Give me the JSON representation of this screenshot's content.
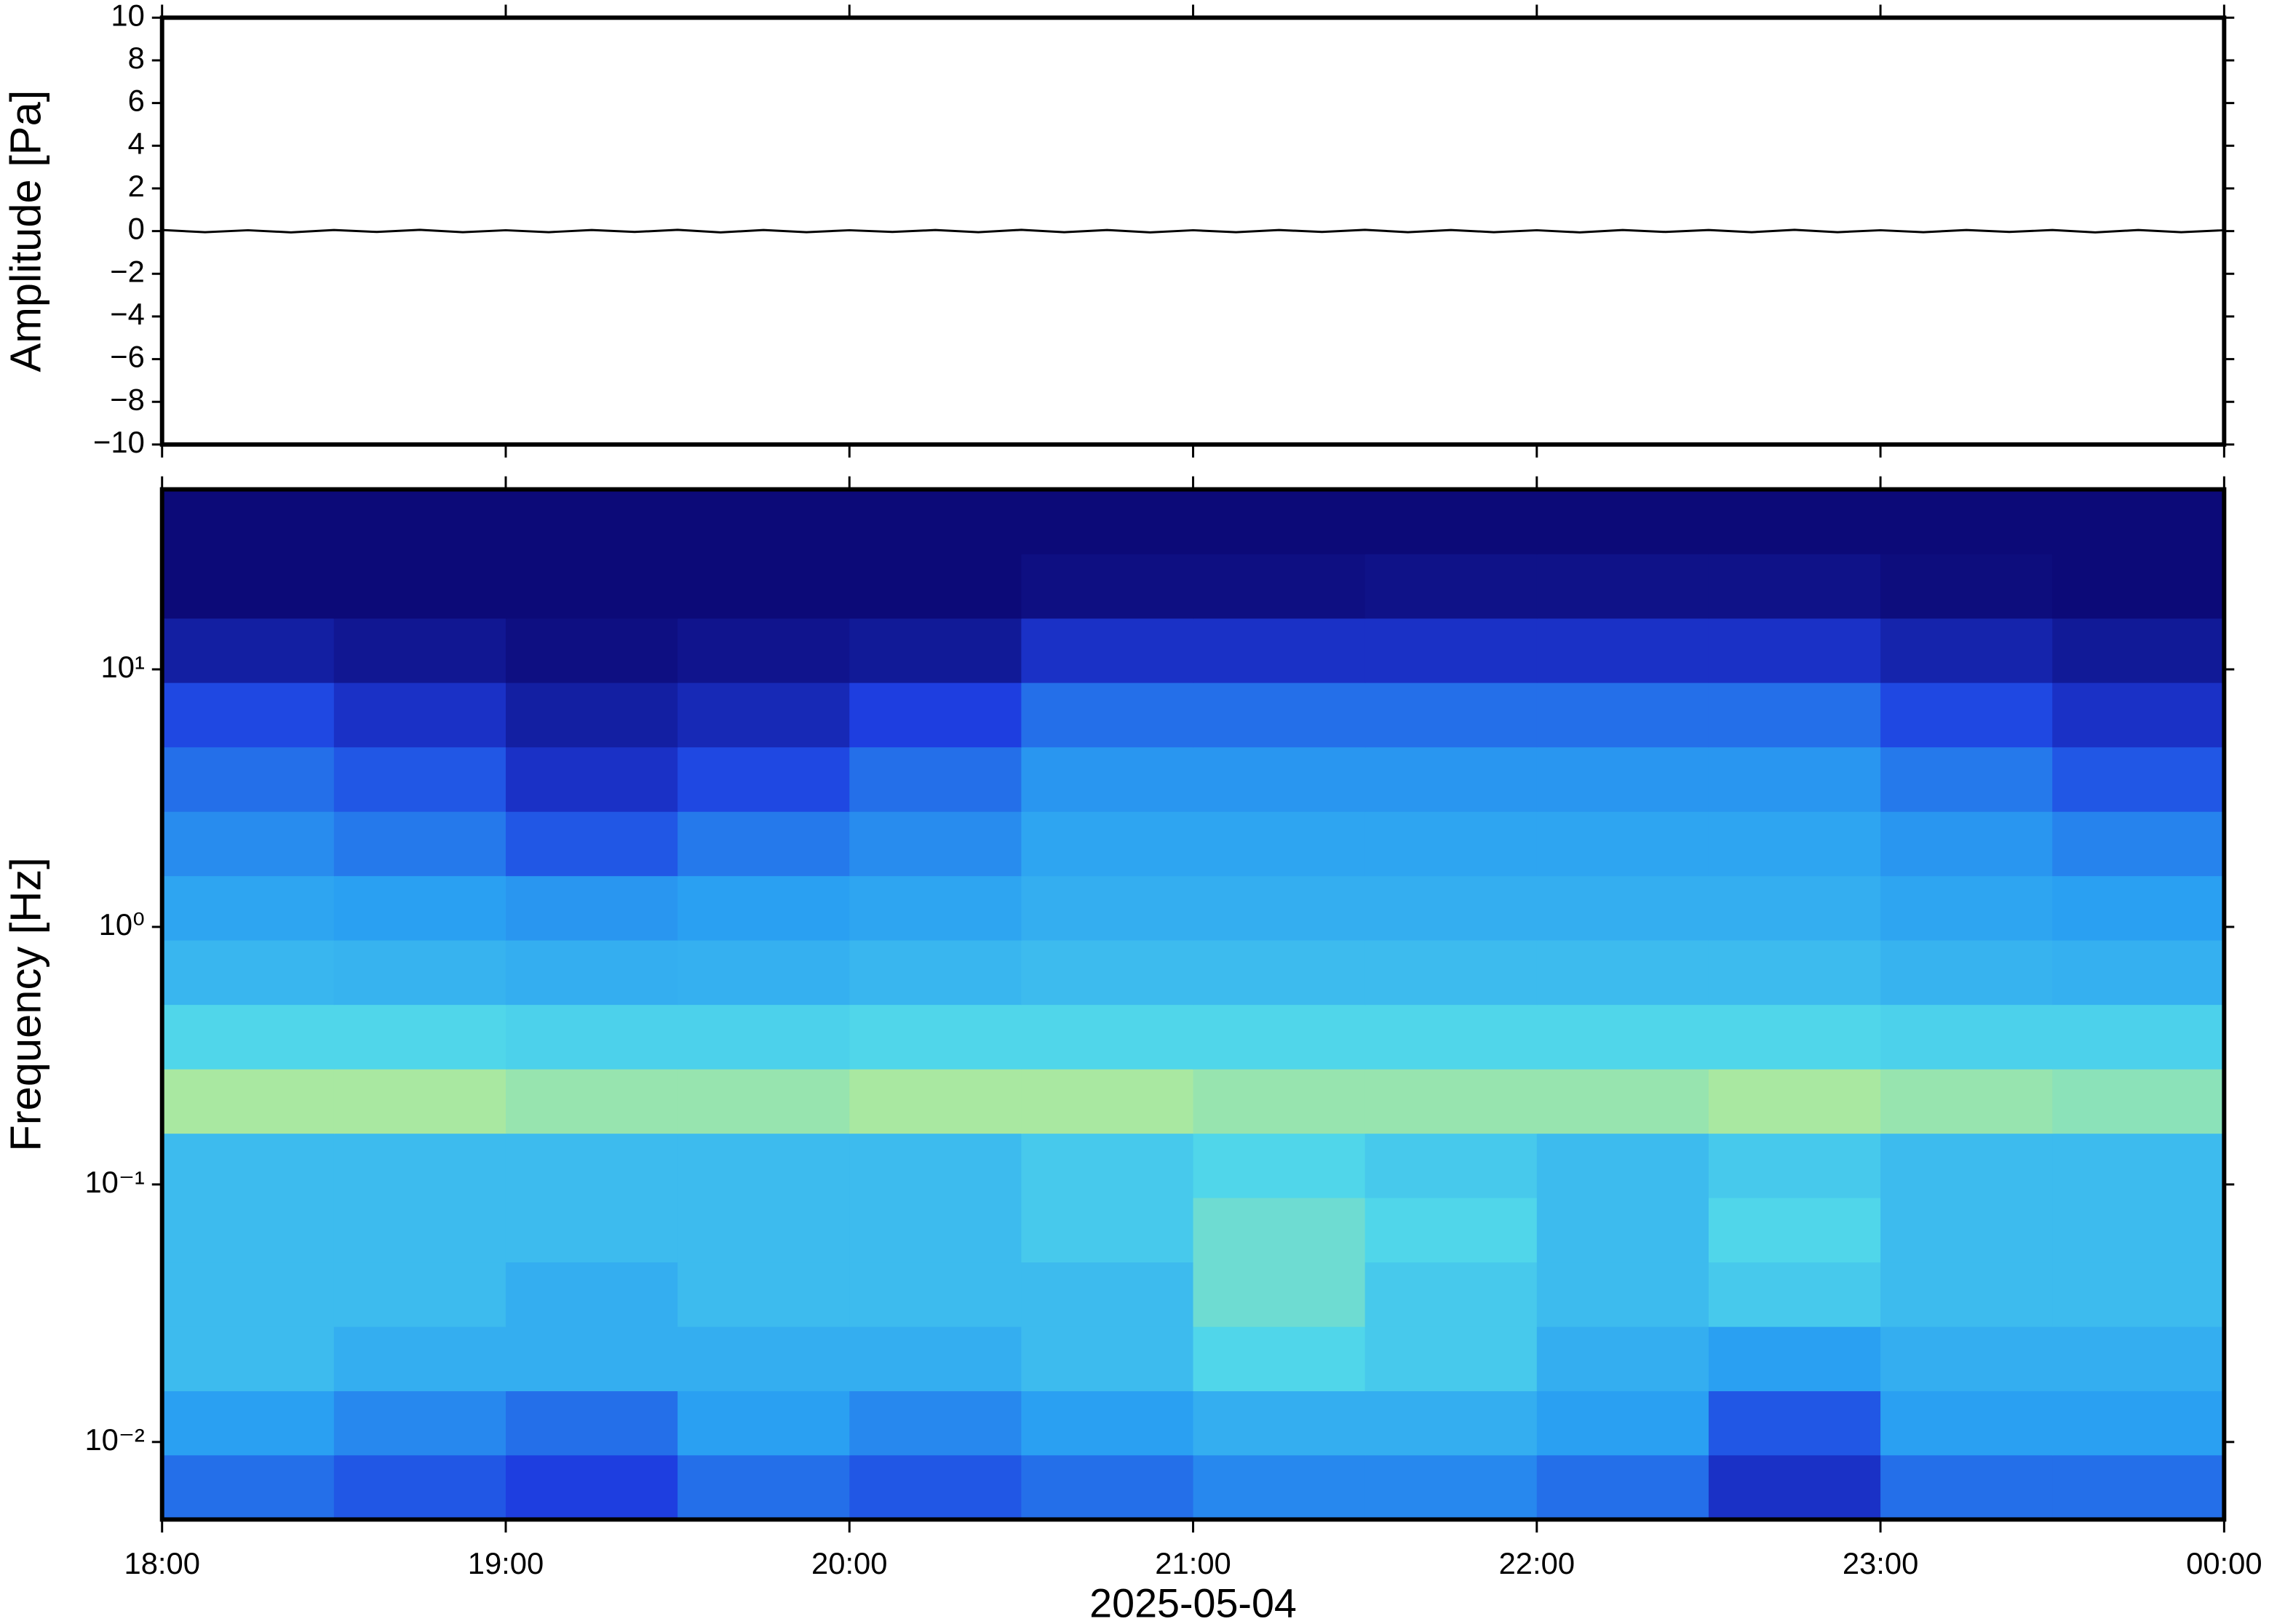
{
  "chart_data": [
    {
      "type": "line",
      "ylabel": "Amplitude [Pa]",
      "color": "#000000",
      "xlim": [
        18,
        24
      ],
      "xticks": [
        18,
        19,
        20,
        21,
        22,
        23,
        24
      ],
      "ylim": [
        -10,
        10
      ],
      "yticks": [
        {
          "value": -10,
          "label": "−10"
        },
        {
          "value": -8,
          "label": "−8"
        },
        {
          "value": -6,
          "label": "−6"
        },
        {
          "value": -4,
          "label": "−4"
        },
        {
          "value": -2,
          "label": "−2"
        },
        0,
        2,
        4,
        6,
        8,
        10
      ],
      "x": [
        18,
        18.125,
        18.25,
        18.375,
        18.5,
        18.625,
        18.75,
        18.875,
        19,
        19.125,
        19.25,
        19.375,
        19.5,
        19.625,
        19.75,
        19.875,
        20,
        20.125,
        20.25,
        20.375,
        20.5,
        20.625,
        20.75,
        20.875,
        21,
        21.125,
        21.25,
        21.375,
        21.5,
        21.625,
        21.75,
        21.875,
        22,
        22.125,
        22.25,
        22.375,
        22.5,
        22.625,
        22.75,
        22.875,
        23,
        23.125,
        23.25,
        23.375,
        23.5,
        23.625,
        23.75,
        23.875,
        24
      ],
      "values": [
        0.05,
        -0.05,
        0.04,
        -0.06,
        0.05,
        -0.04,
        0.06,
        -0.05,
        0.04,
        -0.05,
        0.05,
        -0.04,
        0.06,
        -0.06,
        0.05,
        -0.05,
        0.04,
        -0.04,
        0.05,
        -0.05,
        0.06,
        -0.05,
        0.05,
        -0.06,
        0.04,
        -0.05,
        0.05,
        -0.04,
        0.06,
        -0.05,
        0.05,
        -0.05,
        0.04,
        -0.06,
        0.05,
        -0.04,
        0.05,
        -0.05,
        0.06,
        -0.05,
        0.04,
        -0.05,
        0.05,
        -0.04,
        0.05,
        -0.06,
        0.05,
        -0.05,
        0.04
      ]
    },
    {
      "type": "heatmap",
      "ylabel": "Frequency [Hz]",
      "xlabel": "2025-05-04",
      "log_y": true,
      "xlim": [
        18,
        24
      ],
      "xticks": [
        {
          "value": 18,
          "label": "18:00"
        },
        {
          "value": 19,
          "label": "19:00"
        },
        {
          "value": 20,
          "label": "20:00"
        },
        {
          "value": 21,
          "label": "21:00"
        },
        {
          "value": 22,
          "label": "22:00"
        },
        {
          "value": 23,
          "label": "23:00"
        },
        {
          "value": 24,
          "label": "00:00"
        }
      ],
      "ylim": [
        0.005,
        50
      ],
      "yticks": [
        {
          "value": 0.01,
          "label": "10⁻²"
        },
        {
          "value": 0.1,
          "label": "10⁻¹"
        },
        {
          "value": 1,
          "label": "10⁰"
        },
        {
          "value": 10,
          "label": "10¹"
        }
      ],
      "colormap": [
        "#0c0a78",
        "#1e3ee0",
        "#2aa0f2",
        "#50d6ea",
        "#c6ee88",
        "#f6e06c"
      ],
      "x": [
        18.25,
        18.75,
        19.25,
        19.75,
        20.25,
        20.75,
        21.25,
        21.75,
        22.25,
        22.75,
        23.25,
        23.75
      ],
      "y": [
        0.0067,
        0.0119,
        0.0211,
        0.0376,
        0.0668,
        0.119,
        0.211,
        0.376,
        0.668,
        1.19,
        2.11,
        3.76,
        6.68,
        11.9,
        21.1,
        37.6
      ],
      "z": [
        [
          0.3,
          0.25,
          0.2,
          0.3,
          0.25,
          0.3,
          0.35,
          0.35,
          0.3,
          0.15,
          0.3,
          0.3
        ],
        [
          0.4,
          0.35,
          0.3,
          0.4,
          0.35,
          0.4,
          0.45,
          0.45,
          0.4,
          0.25,
          0.4,
          0.4
        ],
        [
          0.5,
          0.45,
          0.45,
          0.45,
          0.45,
          0.5,
          0.6,
          0.55,
          0.45,
          0.4,
          0.45,
          0.45
        ],
        [
          0.5,
          0.5,
          0.45,
          0.5,
          0.5,
          0.5,
          0.65,
          0.55,
          0.5,
          0.55,
          0.5,
          0.5
        ],
        [
          0.5,
          0.5,
          0.5,
          0.5,
          0.5,
          0.55,
          0.65,
          0.6,
          0.5,
          0.6,
          0.5,
          0.5
        ],
        [
          0.5,
          0.5,
          0.5,
          0.5,
          0.5,
          0.55,
          0.6,
          0.55,
          0.5,
          0.55,
          0.5,
          0.5
        ],
        [
          0.75,
          0.75,
          0.72,
          0.72,
          0.75,
          0.75,
          0.72,
          0.72,
          0.72,
          0.75,
          0.72,
          0.7
        ],
        [
          0.6,
          0.6,
          0.58,
          0.58,
          0.6,
          0.6,
          0.6,
          0.6,
          0.6,
          0.6,
          0.58,
          0.58
        ],
        [
          0.48,
          0.47,
          0.45,
          0.46,
          0.48,
          0.5,
          0.5,
          0.5,
          0.5,
          0.5,
          0.47,
          0.46
        ],
        [
          0.42,
          0.4,
          0.38,
          0.4,
          0.42,
          0.45,
          0.45,
          0.45,
          0.45,
          0.45,
          0.42,
          0.4
        ],
        [
          0.36,
          0.32,
          0.25,
          0.32,
          0.36,
          0.42,
          0.42,
          0.42,
          0.42,
          0.42,
          0.38,
          0.34
        ],
        [
          0.3,
          0.25,
          0.15,
          0.22,
          0.3,
          0.38,
          0.38,
          0.38,
          0.38,
          0.38,
          0.32,
          0.25
        ],
        [
          0.22,
          0.15,
          0.08,
          0.12,
          0.2,
          0.3,
          0.3,
          0.3,
          0.3,
          0.3,
          0.22,
          0.15
        ],
        [
          0.08,
          0.05,
          0.02,
          0.04,
          0.06,
          0.15,
          0.15,
          0.15,
          0.15,
          0.15,
          0.1,
          0.06
        ],
        [
          0,
          0,
          0,
          0,
          0,
          0.02,
          0.02,
          0.03,
          0.03,
          0.03,
          0.01,
          0
        ],
        [
          0,
          0,
          0,
          0,
          0,
          0,
          0,
          0,
          0,
          0,
          0,
          0
        ]
      ]
    }
  ]
}
